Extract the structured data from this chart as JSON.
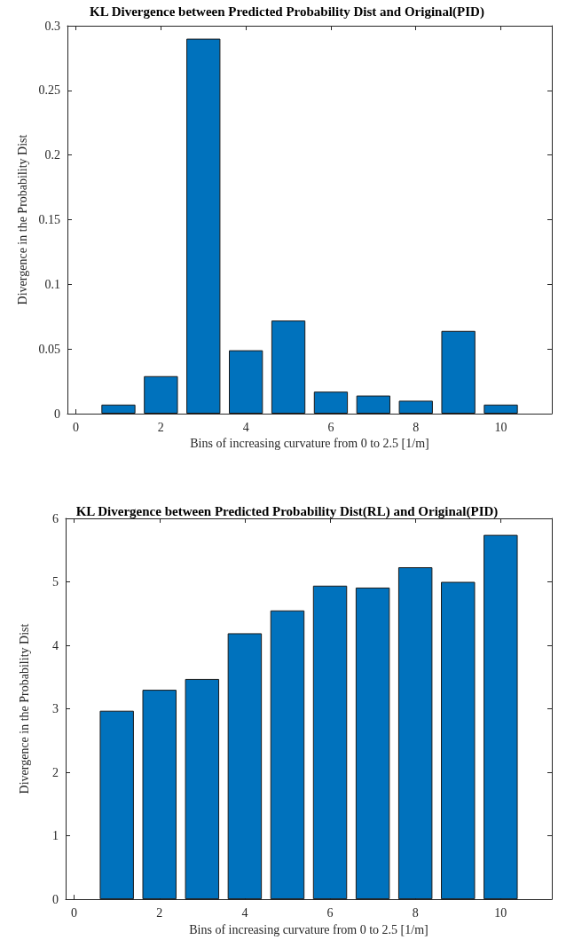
{
  "chart_data": [
    {
      "type": "bar",
      "title": "KL Divergence between Predicted Probability Dist and Original(PID)",
      "xlabel": "Bins of increasing curvature from 0 to 2.5 [1/m]",
      "ylabel": "Divergence in the Probability Dist",
      "x": [
        1,
        2,
        3,
        4,
        5,
        6,
        7,
        8,
        9,
        10
      ],
      "values": [
        0.007,
        0.029,
        0.29,
        0.049,
        0.072,
        0.017,
        0.014,
        0.01,
        0.064,
        0.007
      ],
      "color": "#0072bd",
      "xlim": [
        -0.2,
        11.2
      ],
      "xticks": [
        0,
        2,
        4,
        6,
        8,
        10
      ],
      "ylim": [
        0,
        0.3
      ],
      "yticks": [
        0,
        0.05,
        0.1,
        0.15,
        0.2,
        0.25,
        0.3
      ]
    },
    {
      "type": "bar",
      "title": "KL Divergence between Predicted Probability Dist(RL) and Original(PID)",
      "xlabel": "Bins of increasing curvature from 0 to 2.5 [1/m]",
      "ylabel": "Divergence in the Probability Dist",
      "x": [
        1,
        2,
        3,
        4,
        5,
        6,
        7,
        8,
        9,
        10
      ],
      "values": [
        2.97,
        3.3,
        3.47,
        4.19,
        4.55,
        4.94,
        4.91,
        5.23,
        5.0,
        5.74
      ],
      "color": "#0072bd",
      "xlim": [
        -0.2,
        11.2
      ],
      "xticks": [
        0,
        2,
        4,
        6,
        8,
        10
      ],
      "ylim": [
        0,
        6
      ],
      "yticks": [
        0,
        1,
        2,
        3,
        4,
        5,
        6
      ]
    }
  ]
}
